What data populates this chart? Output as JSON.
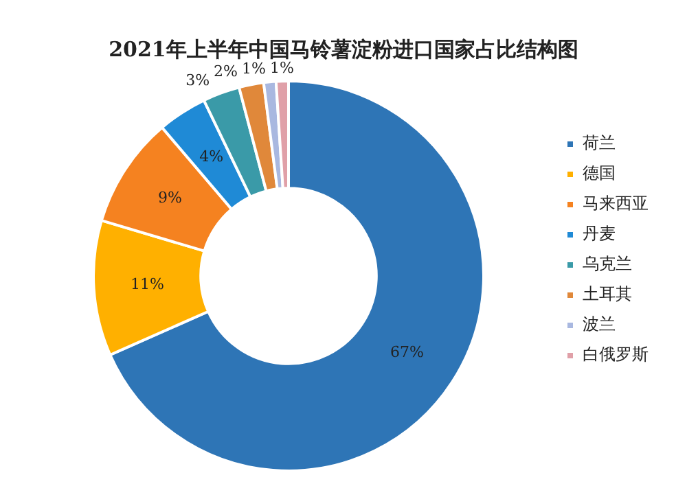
{
  "chart_data": {
    "type": "donut",
    "title": "2021年上半年中国马铃薯淀粉进口国家占比结构图",
    "categories": [
      "荷兰",
      "德国",
      "马来西亚",
      "丹麦",
      "乌克兰",
      "土耳其",
      "波兰",
      "白俄罗斯"
    ],
    "values": [
      67,
      11,
      9,
      4,
      3,
      2,
      1,
      1
    ],
    "value_labels": [
      "67%",
      "11%",
      "9%",
      "4%",
      "3%",
      "2%",
      "1%",
      "1%"
    ],
    "colors": [
      "#2e75b6",
      "#ffb000",
      "#f58220",
      "#1f8ad6",
      "#3a9aa8",
      "#e0883a",
      "#a9b8e0",
      "#e0a0a8"
    ],
    "legend": "right"
  }
}
